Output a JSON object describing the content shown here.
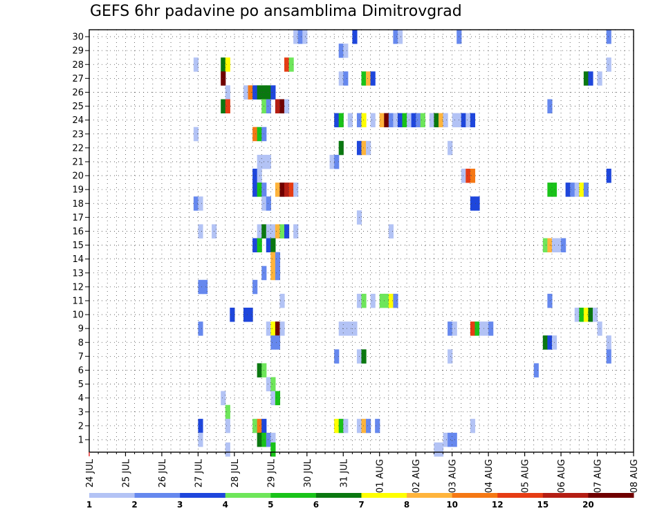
{
  "chart_data": {
    "type": "heatmap",
    "title": "GEFS 6hr padavine po ansamblima Dimitrovgrad",
    "xlabel": "",
    "ylabel": "",
    "x_start": "24 JUL",
    "x_step_hours": 6,
    "x_ticks": [
      "24 JUL",
      "25 JUL",
      "26 JUL",
      "27 JUL",
      "28 JUL",
      "29 JUL",
      "30 JUL",
      "31 JUL",
      "01 AUG",
      "02 AUG",
      "03 AUG",
      "04 AUG",
      "05 AUG",
      "06 AUG",
      "07 AUG",
      "08 AUG"
    ],
    "y_ticks": [
      1,
      2,
      3,
      4,
      5,
      6,
      7,
      8,
      9,
      10,
      11,
      12,
      13,
      14,
      15,
      16,
      17,
      18,
      19,
      20,
      21,
      22,
      23,
      24,
      25,
      26,
      27,
      28,
      29,
      30
    ],
    "grid": true,
    "colorbar": {
      "labels": [
        "1",
        "2",
        "3",
        "4",
        "5",
        "6",
        "7",
        "8",
        "10",
        "12",
        "15",
        "20"
      ],
      "colors": [
        "#b3c3f5",
        "#6688ee",
        "#1e46dc",
        "#6ee65a",
        "#19c319",
        "#0a7810",
        "#ffff00",
        "#ffb43c",
        "#f57814",
        "#e63c14",
        "#b41e14",
        "#700000"
      ]
    },
    "cells": [
      [
        30,
        45,
        0
      ],
      [
        30,
        46,
        1
      ],
      [
        30,
        47,
        0
      ],
      [
        30,
        58,
        2
      ],
      [
        30,
        67,
        1
      ],
      [
        30,
        68,
        0
      ],
      [
        30,
        81,
        1
      ],
      [
        30,
        114,
        1
      ],
      [
        29,
        55,
        1
      ],
      [
        29,
        56,
        0
      ],
      [
        28,
        23,
        0
      ],
      [
        28,
        29,
        5
      ],
      [
        28,
        30,
        6
      ],
      [
        28,
        43,
        9
      ],
      [
        28,
        44,
        3
      ],
      [
        28,
        114,
        0
      ],
      [
        27,
        29,
        11
      ],
      [
        27,
        55,
        0
      ],
      [
        27,
        56,
        1
      ],
      [
        27,
        60,
        4
      ],
      [
        27,
        61,
        7
      ],
      [
        27,
        62,
        2
      ],
      [
        27,
        109,
        5
      ],
      [
        27,
        110,
        2
      ],
      [
        27,
        112,
        0
      ],
      [
        26,
        30,
        0
      ],
      [
        26,
        34,
        0
      ],
      [
        26,
        35,
        8
      ],
      [
        26,
        36,
        2
      ],
      [
        26,
        37,
        5
      ],
      [
        26,
        38,
        5
      ],
      [
        26,
        39,
        5
      ],
      [
        26,
        40,
        2
      ],
      [
        25,
        29,
        5
      ],
      [
        25,
        30,
        9
      ],
      [
        25,
        38,
        3
      ],
      [
        25,
        39,
        1
      ],
      [
        25,
        41,
        10
      ],
      [
        25,
        42,
        11
      ],
      [
        25,
        43,
        0
      ],
      [
        25,
        101,
        1
      ],
      [
        24,
        54,
        2
      ],
      [
        24,
        55,
        4
      ],
      [
        24,
        57,
        0
      ],
      [
        24,
        59,
        1
      ],
      [
        24,
        60,
        6
      ],
      [
        24,
        62,
        0
      ],
      [
        24,
        64,
        7
      ],
      [
        24,
        65,
        11
      ],
      [
        24,
        66,
        1
      ],
      [
        24,
        67,
        0
      ],
      [
        24,
        68,
        2
      ],
      [
        24,
        69,
        4
      ],
      [
        24,
        70,
        0
      ],
      [
        24,
        71,
        2
      ],
      [
        24,
        72,
        1
      ],
      [
        24,
        73,
        3
      ],
      [
        24,
        75,
        0
      ],
      [
        24,
        76,
        5
      ],
      [
        24,
        77,
        7
      ],
      [
        24,
        78,
        0
      ],
      [
        24,
        80,
        0
      ],
      [
        24,
        81,
        0
      ],
      [
        24,
        82,
        2
      ],
      [
        24,
        83,
        0
      ],
      [
        24,
        84,
        2
      ],
      [
        23,
        23,
        0
      ],
      [
        23,
        36,
        8
      ],
      [
        23,
        37,
        4
      ],
      [
        23,
        38,
        1
      ],
      [
        22,
        55,
        5
      ],
      [
        22,
        59,
        2
      ],
      [
        22,
        60,
        7
      ],
      [
        22,
        61,
        0
      ],
      [
        22,
        79,
        0
      ],
      [
        21,
        37,
        0
      ],
      [
        21,
        38,
        0
      ],
      [
        21,
        39,
        0
      ],
      [
        21,
        53,
        0
      ],
      [
        21,
        54,
        1
      ],
      [
        20,
        36,
        2
      ],
      [
        20,
        37,
        0
      ],
      [
        20,
        82,
        0
      ],
      [
        20,
        83,
        9
      ],
      [
        20,
        84,
        8
      ],
      [
        20,
        114,
        2
      ],
      [
        19,
        36,
        2
      ],
      [
        19,
        37,
        4
      ],
      [
        19,
        38,
        1
      ],
      [
        19,
        41,
        7
      ],
      [
        19,
        42,
        11
      ],
      [
        19,
        43,
        10
      ],
      [
        19,
        44,
        9
      ],
      [
        19,
        45,
        0
      ],
      [
        19,
        101,
        4
      ],
      [
        19,
        102,
        4
      ],
      [
        19,
        105,
        2
      ],
      [
        19,
        106,
        1
      ],
      [
        19,
        107,
        0
      ],
      [
        19,
        108,
        6
      ],
      [
        19,
        109,
        1
      ],
      [
        18,
        23,
        1
      ],
      [
        18,
        24,
        0
      ],
      [
        18,
        38,
        0
      ],
      [
        18,
        39,
        1
      ],
      [
        18,
        84,
        2
      ],
      [
        18,
        85,
        2
      ],
      [
        17,
        59,
        0
      ],
      [
        16,
        24,
        0
      ],
      [
        16,
        27,
        0
      ],
      [
        16,
        37,
        0
      ],
      [
        16,
        38,
        5
      ],
      [
        16,
        39,
        0
      ],
      [
        16,
        40,
        0
      ],
      [
        16,
        41,
        7
      ],
      [
        16,
        42,
        3
      ],
      [
        16,
        43,
        2
      ],
      [
        16,
        45,
        0
      ],
      [
        16,
        66,
        0
      ],
      [
        15,
        36,
        2
      ],
      [
        15,
        37,
        4
      ],
      [
        15,
        39,
        2
      ],
      [
        15,
        40,
        5
      ],
      [
        15,
        100,
        3
      ],
      [
        15,
        101,
        7
      ],
      [
        15,
        102,
        0
      ],
      [
        15,
        103,
        0
      ],
      [
        15,
        104,
        1
      ],
      [
        14,
        40,
        7
      ],
      [
        14,
        41,
        1
      ],
      [
        13,
        38,
        1
      ],
      [
        13,
        40,
        7
      ],
      [
        13,
        41,
        1
      ],
      [
        12,
        24,
        1
      ],
      [
        12,
        25,
        1
      ],
      [
        12,
        36,
        1
      ],
      [
        11,
        42,
        0
      ],
      [
        11,
        59,
        0
      ],
      [
        11,
        60,
        3
      ],
      [
        11,
        62,
        0
      ],
      [
        11,
        64,
        3
      ],
      [
        11,
        65,
        3
      ],
      [
        11,
        66,
        6
      ],
      [
        11,
        67,
        1
      ],
      [
        11,
        101,
        1
      ],
      [
        10,
        31,
        2
      ],
      [
        10,
        34,
        2
      ],
      [
        10,
        35,
        2
      ],
      [
        10,
        107,
        0
      ],
      [
        10,
        108,
        4
      ],
      [
        10,
        109,
        6
      ],
      [
        10,
        110,
        5
      ],
      [
        10,
        111,
        0
      ],
      [
        9,
        24,
        1
      ],
      [
        9,
        39,
        0
      ],
      [
        9,
        40,
        6
      ],
      [
        9,
        41,
        11
      ],
      [
        9,
        42,
        0
      ],
      [
        9,
        55,
        0
      ],
      [
        9,
        56,
        0
      ],
      [
        9,
        57,
        0
      ],
      [
        9,
        58,
        0
      ],
      [
        9,
        79,
        1
      ],
      [
        9,
        80,
        0
      ],
      [
        9,
        84,
        9
      ],
      [
        9,
        85,
        4
      ],
      [
        9,
        86,
        0
      ],
      [
        9,
        87,
        0
      ],
      [
        9,
        88,
        1
      ],
      [
        9,
        112,
        0
      ],
      [
        8,
        40,
        1
      ],
      [
        8,
        41,
        1
      ],
      [
        8,
        100,
        5
      ],
      [
        8,
        101,
        2
      ],
      [
        8,
        102,
        0
      ],
      [
        8,
        114,
        0
      ],
      [
        7,
        54,
        1
      ],
      [
        7,
        59,
        0
      ],
      [
        7,
        60,
        5
      ],
      [
        7,
        79,
        0
      ],
      [
        7,
        114,
        1
      ],
      [
        6,
        37,
        5
      ],
      [
        6,
        38,
        3
      ],
      [
        6,
        98,
        1
      ],
      [
        5,
        39,
        0
      ],
      [
        5,
        40,
        3
      ],
      [
        4,
        29,
        0
      ],
      [
        4,
        40,
        0
      ],
      [
        4,
        41,
        4
      ],
      [
        3,
        30,
        3
      ],
      [
        2,
        24,
        2
      ],
      [
        2,
        30,
        0
      ],
      [
        2,
        36,
        3
      ],
      [
        2,
        37,
        8
      ],
      [
        2,
        38,
        2
      ],
      [
        2,
        54,
        6
      ],
      [
        2,
        55,
        4
      ],
      [
        2,
        56,
        0
      ],
      [
        2,
        59,
        0
      ],
      [
        2,
        60,
        7
      ],
      [
        2,
        61,
        1
      ],
      [
        2,
        63,
        1
      ],
      [
        2,
        84,
        0
      ],
      [
        1,
        24,
        0
      ],
      [
        1,
        37,
        5
      ],
      [
        1,
        38,
        4
      ],
      [
        1,
        39,
        1
      ],
      [
        1,
        40,
        0
      ],
      [
        1,
        78,
        0
      ],
      [
        1,
        79,
        1
      ],
      [
        1,
        80,
        1
      ],
      [
        0,
        30,
        0
      ],
      [
        0,
        40,
        4
      ],
      [
        0,
        76,
        0
      ],
      [
        0,
        77,
        0
      ]
    ]
  }
}
